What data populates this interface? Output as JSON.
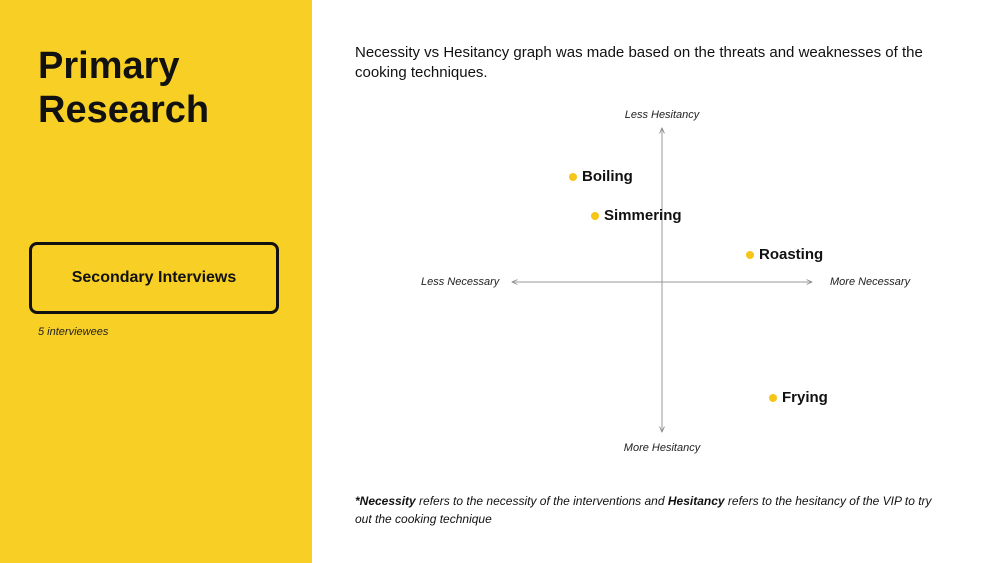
{
  "sidebar": {
    "title_line1": "Primary",
    "title_line2": "Research",
    "box_label": "Secondary Interviews",
    "note": "5 interviewees",
    "background": "#f8cf24"
  },
  "main": {
    "intro": "Necessity vs Hesitancy graph was made based on the threats and weaknesses of the cooking techniques.",
    "footnote": {
      "term1": "*Necessity",
      "text1": " refers to the necessity of the interventions and ",
      "term2": "Hesitancy",
      "text2": " refers to the hesitancy of the VIP to try out the cooking technique"
    }
  },
  "graph": {
    "axis_top": "Less Hesitancy",
    "axis_bottom": "More Hesitancy",
    "axis_left": "Less Necessary",
    "axis_right": "More Necessary",
    "dot_color": "#f5c518",
    "points": [
      {
        "label": "Boiling"
      },
      {
        "label": "Simmering"
      },
      {
        "label": "Roasting"
      },
      {
        "label": "Frying"
      }
    ]
  }
}
